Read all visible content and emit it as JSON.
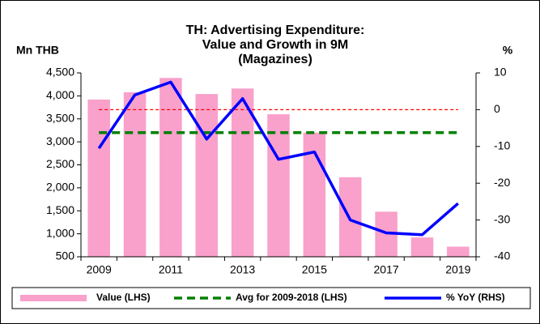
{
  "chart_data": {
    "type": "bar",
    "title": [
      "TH: Advertising Expenditure:",
      "Value and Growth in 9M",
      "(Magazines)"
    ],
    "y_axis_label": "Mn THB",
    "y2_axis_label": "%",
    "categories": [
      "2009",
      null,
      "2011",
      null,
      "2013",
      null,
      "2015",
      null,
      "2017",
      null,
      "2019"
    ],
    "series": [
      {
        "name": "Value (LHS)",
        "type": "bar",
        "color": "#f9a0cb",
        "values": [
          3920,
          4080,
          4390,
          4040,
          4160,
          3600,
          3200,
          2230,
          1480,
          920,
          720
        ]
      },
      {
        "name": "Avg for 2009-2018 (LHS)",
        "type": "hline",
        "color": "#008000",
        "dashed": true,
        "value": 3200
      },
      {
        "name": "% YoY (RHS)",
        "type": "line",
        "axis": "y2",
        "color": "#0000ff",
        "values": [
          -10.5,
          4,
          7.5,
          -8,
          3,
          -13.5,
          -11.5,
          -30,
          -33.5,
          -34,
          -25.5
        ]
      }
    ],
    "reference_line": {
      "axis": "y2",
      "value": 0,
      "color": "#ff0000",
      "dashed": true
    },
    "ylim": [
      500,
      4500
    ],
    "yticks": [
      500,
      {
        "value": 1000,
        "label": "1,000"
      },
      {
        "value": 1500,
        "label": "1,500"
      },
      {
        "value": 2000,
        "label": "2,000"
      },
      {
        "value": 2500,
        "label": "2,500"
      },
      {
        "value": 3000,
        "label": "3,000"
      },
      {
        "value": 3500,
        "label": "3,500"
      },
      {
        "value": 4000,
        "label": "4,000"
      },
      {
        "value": 4500,
        "label": "4,500"
      }
    ],
    "y2lim": [
      -40,
      10
    ],
    "y2ticks": [
      -40,
      -30,
      -20,
      -10,
      0,
      10
    ],
    "legend": "bottom"
  }
}
